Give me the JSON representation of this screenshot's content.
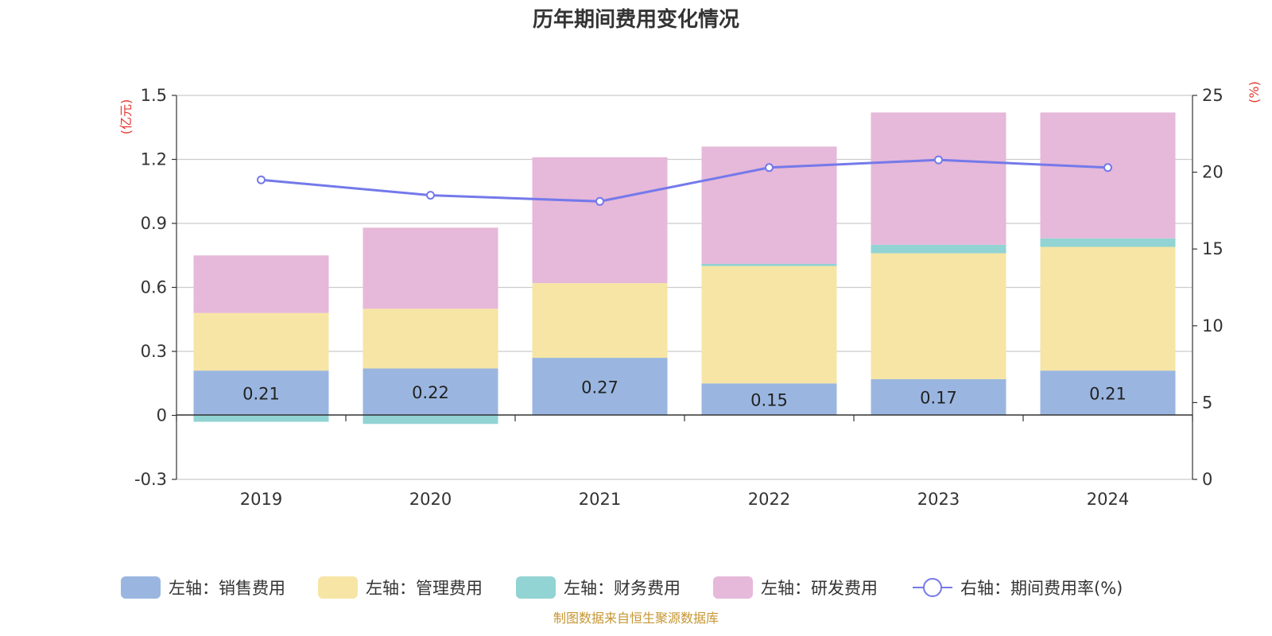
{
  "title": "历年期间费用变化情况",
  "source_note": "制图数据来自恒生聚源数据库",
  "colors": {
    "sales": "#9ab6e0",
    "admin": "#f7e5a5",
    "finance": "#92d3d3",
    "rnd": "#e6b8d9",
    "ratio": "#7479ea",
    "axis_unit": "#e8362e",
    "grid": "#cccccc",
    "text": "#333333"
  },
  "chart_data": {
    "type": "bar",
    "stacked": true,
    "categories": [
      "2019",
      "2020",
      "2021",
      "2022",
      "2023",
      "2024"
    ],
    "y_left": {
      "unit_label": "(亿元)",
      "ylim": [
        -0.3,
        1.5
      ],
      "ticks": [
        -0.3,
        0,
        0.3,
        0.6,
        0.9,
        1.2,
        1.5
      ],
      "tick_labels": [
        "-0.3",
        "0",
        "0.3",
        "0.6",
        "0.9",
        "1.2",
        "1.5"
      ]
    },
    "y_right": {
      "unit_label": "(%)",
      "ylim": [
        0,
        25
      ],
      "ticks": [
        0,
        5,
        10,
        15,
        20,
        25
      ],
      "tick_labels": [
        "0",
        "5",
        "10",
        "15",
        "20",
        "25"
      ]
    },
    "grid": true,
    "legend_position": "bottom",
    "series": [
      {
        "key": "sales",
        "name": "左轴：销售费用",
        "axis": "left",
        "kind": "bar",
        "values": [
          0.21,
          0.22,
          0.27,
          0.15,
          0.17,
          0.21
        ],
        "labels": [
          "0.21",
          "0.22",
          "0.27",
          "0.15",
          "0.17",
          "0.21"
        ]
      },
      {
        "key": "admin",
        "name": "左轴：管理费用",
        "axis": "left",
        "kind": "bar",
        "values": [
          0.27,
          0.28,
          0.35,
          0.55,
          0.59,
          0.58
        ]
      },
      {
        "key": "finance",
        "name": "左轴：财务费用",
        "axis": "left",
        "kind": "bar",
        "values": [
          -0.03,
          -0.04,
          0.0,
          0.01,
          0.04,
          0.04
        ]
      },
      {
        "key": "rnd",
        "name": "左轴：研发费用",
        "axis": "left",
        "kind": "bar",
        "values": [
          0.27,
          0.38,
          0.59,
          0.55,
          0.62,
          0.59
        ]
      },
      {
        "key": "ratio",
        "name": "右轴：期间费用率(%)",
        "axis": "right",
        "kind": "line",
        "values": [
          19.5,
          18.5,
          18.1,
          20.3,
          20.8,
          20.3
        ]
      }
    ]
  }
}
